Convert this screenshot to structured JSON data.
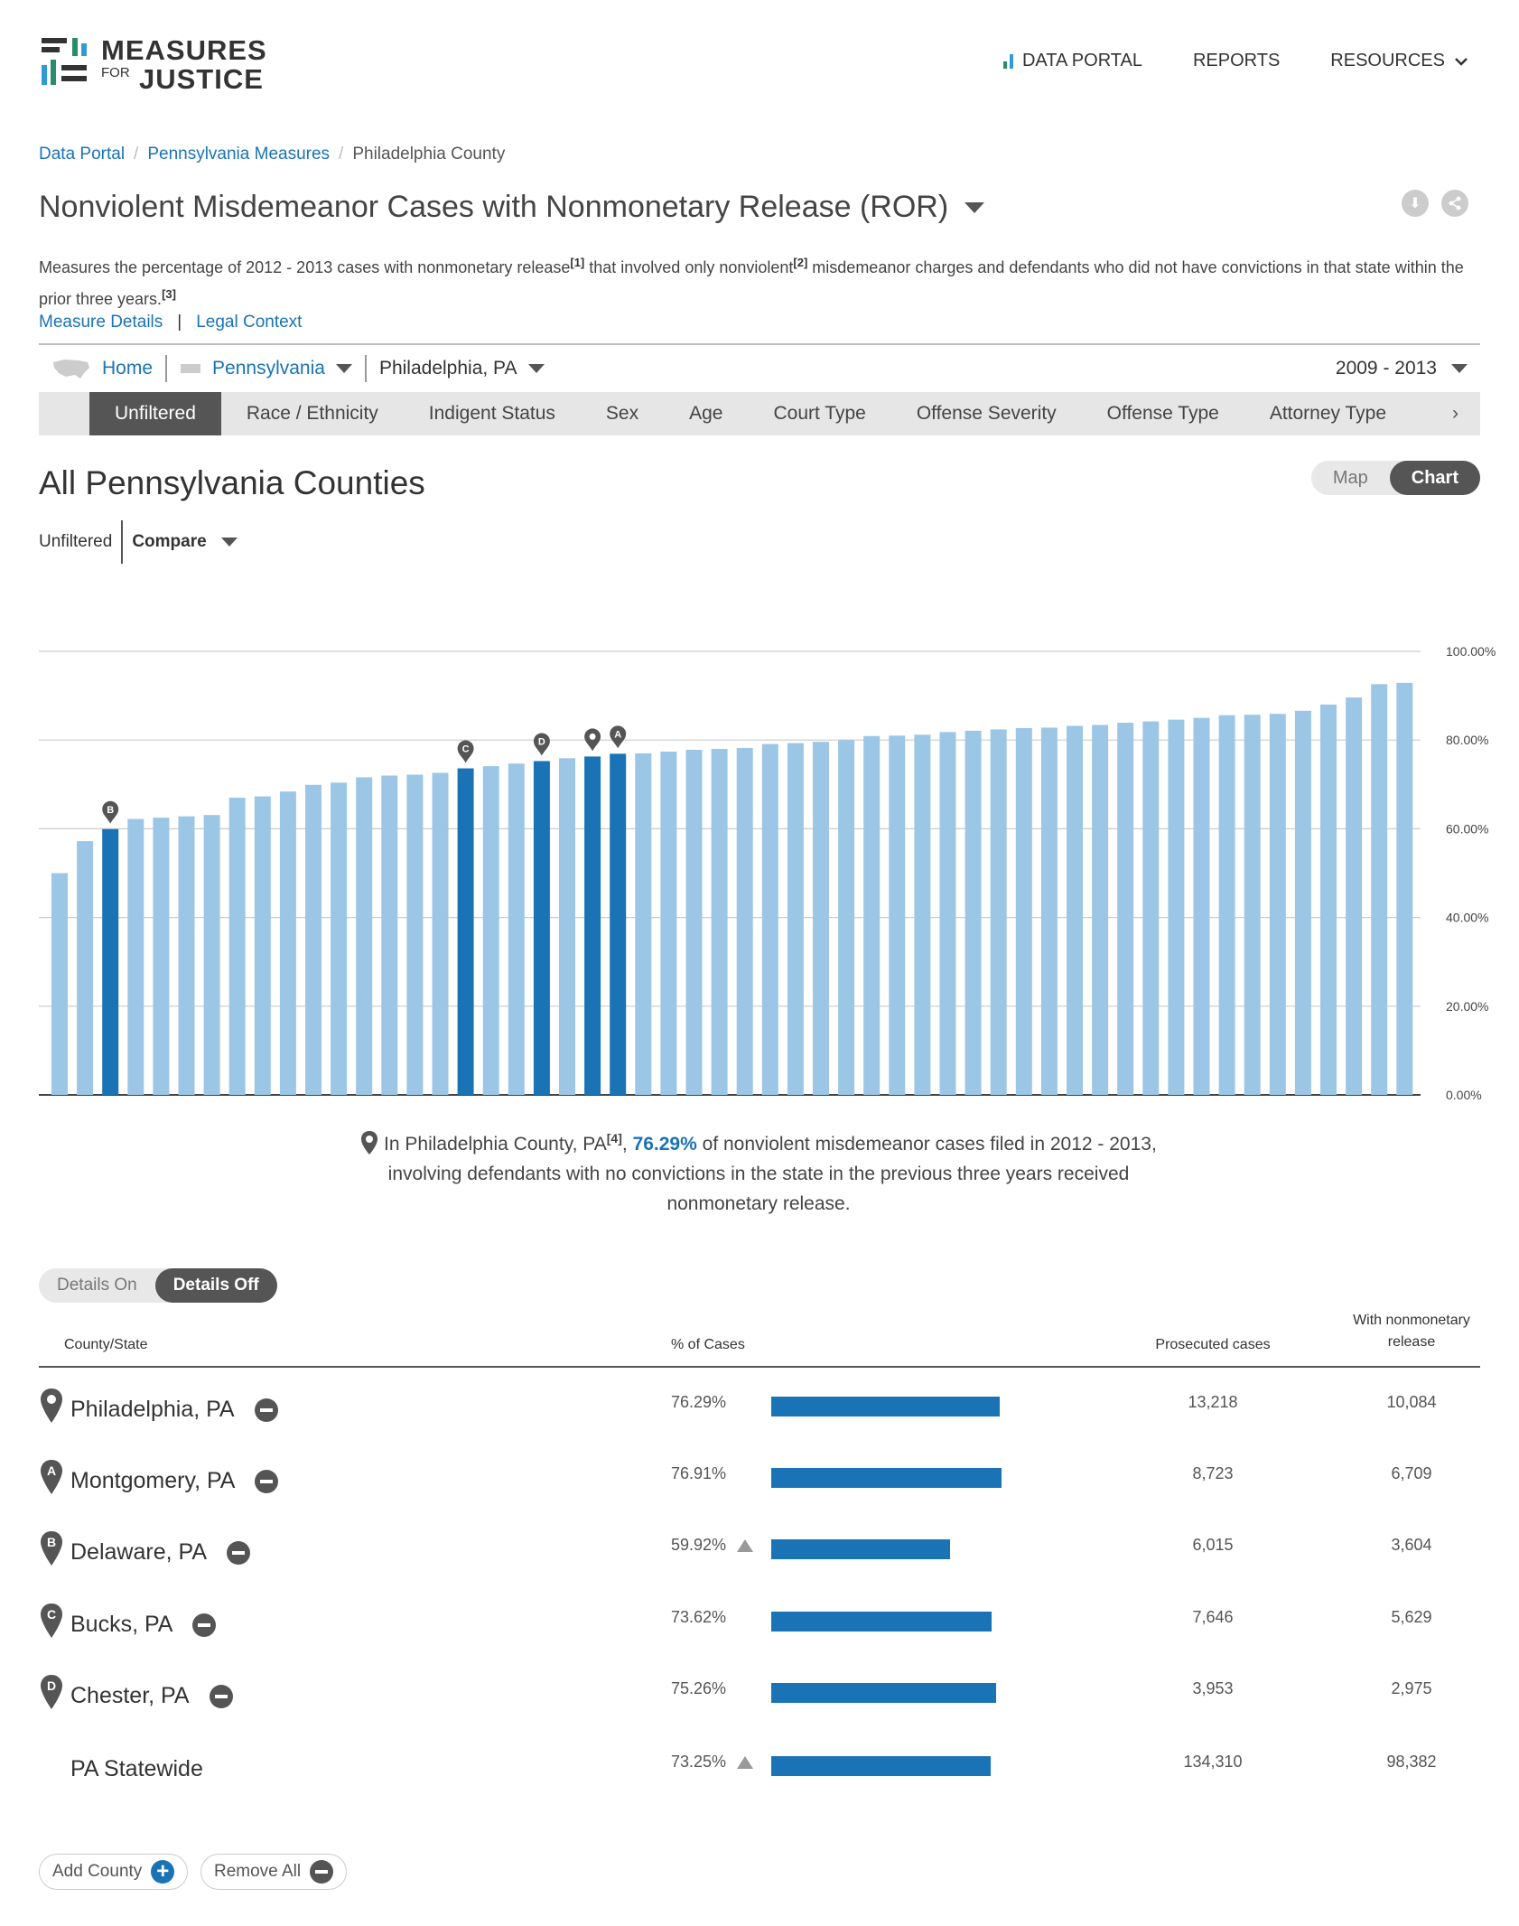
{
  "logo": {
    "word1": "MEASURES",
    "word2": "FOR",
    "word3": "JUSTICE"
  },
  "nav": {
    "data_portal": "DATA PORTAL",
    "reports": "REPORTS",
    "resources": "RESOURCES"
  },
  "breadcrumb": {
    "items": [
      "Data Portal",
      "Pennsylvania Measures"
    ],
    "current": "Philadelphia County",
    "separator": "/"
  },
  "title": "Nonviolent Misdemeanor Cases with Nonmonetary Release (ROR)",
  "description": {
    "part1": "Measures the percentage of 2012 - 2013 cases with nonmonetary release",
    "ref1": "[1]",
    "part2": " that involved only nonviolent",
    "ref2": "[2]",
    "part3": " misdemeanor charges and defendants who did not have convictions in that state within the prior three years.",
    "ref3": "[3]"
  },
  "links": {
    "measure_details": "Measure Details",
    "legal_context": "Legal Context"
  },
  "geo": {
    "home": "Home",
    "state": "Pennsylvania",
    "county": "Philadelphia, PA",
    "range": "2009 - 2013"
  },
  "tabs": [
    "Unfiltered",
    "Race / Ethnicity",
    "Indigent Status",
    "Sex",
    "Age",
    "Court Type",
    "Offense Severity",
    "Offense Type",
    "Attorney Type"
  ],
  "tabs_more": "›",
  "section_title": "All Pennsylvania Counties",
  "view_toggle": {
    "map": "Map",
    "chart": "Chart"
  },
  "filter": {
    "label": "Unfiltered",
    "compare": "Compare"
  },
  "chart_data": {
    "type": "bar",
    "ylim": [
      0,
      100
    ],
    "yticks": [
      "100.00%",
      "80.00%",
      "60.00%",
      "40.00%",
      "20.00%",
      "0.00%"
    ],
    "values": [
      50.0,
      57.2,
      59.92,
      62.2,
      62.5,
      62.8,
      63.1,
      67.0,
      67.3,
      68.4,
      69.9,
      70.4,
      71.6,
      72.0,
      72.2,
      72.6,
      73.62,
      74.1,
      74.7,
      75.26,
      75.9,
      76.29,
      76.91,
      77.0,
      77.4,
      77.8,
      78.0,
      78.2,
      79.1,
      79.3,
      79.6,
      80.0,
      80.9,
      81.0,
      81.2,
      81.8,
      82.1,
      82.4,
      82.7,
      82.8,
      83.2,
      83.4,
      83.9,
      84.2,
      84.6,
      85.0,
      85.6,
      85.7,
      85.9,
      86.6,
      88.0,
      89.6,
      92.6,
      92.9
    ],
    "highlights": [
      {
        "index": 2,
        "marker": "B"
      },
      {
        "index": 16,
        "marker": "C"
      },
      {
        "index": 19,
        "marker": "D"
      },
      {
        "index": 21,
        "marker": "pin"
      },
      {
        "index": 22,
        "marker": "A"
      }
    ],
    "colors": {
      "default": "#9cc6e6",
      "highlight": "#1a73b5"
    }
  },
  "caption": {
    "pre": "In Philadelphia County, PA",
    "ref": "[4]",
    "pct": "76.29%",
    "post": "of nonviolent misdemeanor cases filed in 2012 - 2013,",
    "line2": "involving defendants with no convictions in the state in the previous three years received",
    "line3": "nonmonetary release."
  },
  "details_toggle": {
    "on": "Details On",
    "off": "Details Off"
  },
  "table": {
    "headers": {
      "county": "County/State",
      "pct": "% of Cases",
      "prosecuted": "Prosecuted cases",
      "release_l1": "With nonmonetary",
      "release_l2": "release"
    },
    "rows": [
      {
        "marker": "pin",
        "name": "Philadelphia, PA",
        "pct": "76.29%",
        "value": 76.29,
        "warn": false,
        "prosecuted": "13,218",
        "released": "10,084"
      },
      {
        "marker": "A",
        "name": "Montgomery, PA",
        "pct": "76.91%",
        "value": 76.91,
        "warn": false,
        "prosecuted": "8,723",
        "released": "6,709"
      },
      {
        "marker": "B",
        "name": "Delaware, PA",
        "pct": "59.92%",
        "value": 59.92,
        "warn": true,
        "prosecuted": "6,015",
        "released": "3,604"
      },
      {
        "marker": "C",
        "name": "Bucks, PA",
        "pct": "73.62%",
        "value": 73.62,
        "warn": false,
        "prosecuted": "7,646",
        "released": "5,629"
      },
      {
        "marker": "D",
        "name": "Chester, PA",
        "pct": "75.26%",
        "value": 75.26,
        "warn": false,
        "prosecuted": "3,953",
        "released": "2,975"
      },
      {
        "marker": "",
        "name": "PA Statewide",
        "pct": "73.25%",
        "value": 73.25,
        "warn": true,
        "prosecuted": "134,310",
        "released": "98,382"
      }
    ]
  },
  "buttons": {
    "add_county": "Add County",
    "remove_all": "Remove All"
  }
}
